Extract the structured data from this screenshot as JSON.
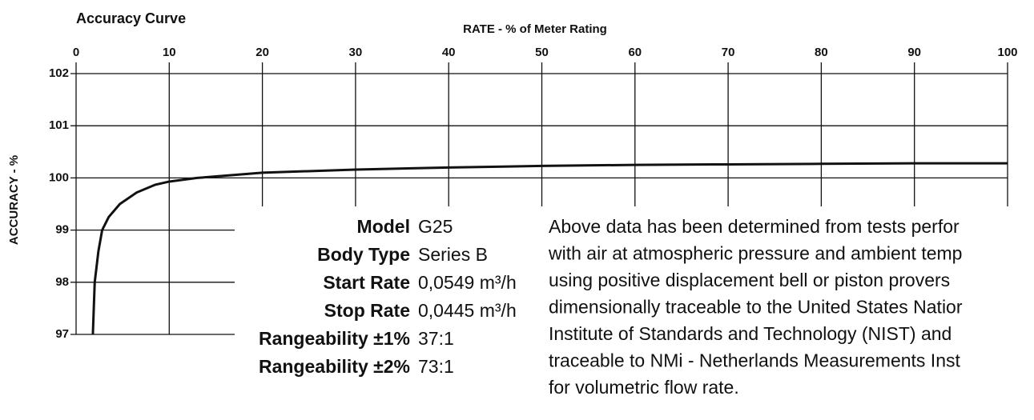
{
  "chart_data": {
    "type": "line",
    "title": "Accuracy Curve",
    "x_label": "RATE - % of Meter Rating",
    "y_label": "ACCURACY - %",
    "xlim": [
      0,
      100
    ],
    "xticks": [
      0,
      10,
      20,
      30,
      40,
      50,
      60,
      70,
      80,
      90,
      100
    ],
    "ylim": [
      97,
      102
    ],
    "yticks": [
      97,
      98,
      99,
      100,
      101,
      102
    ],
    "grid": true,
    "series": [
      {
        "name": "Accuracy",
        "color": "#111111",
        "x": [
          1.8,
          2.0,
          2.4,
          2.8,
          3.5,
          4.7,
          6.5,
          8.5,
          10,
          13,
          20,
          30,
          40,
          50,
          60,
          70,
          80,
          90,
          100
        ],
        "values": [
          97,
          98,
          98.6,
          99,
          99.25,
          99.5,
          99.72,
          99.87,
          99.93,
          100.0,
          100.1,
          100.16,
          100.2,
          100.23,
          100.25,
          100.26,
          100.27,
          100.28,
          100.28
        ]
      }
    ]
  },
  "specs": [
    {
      "label": "Model",
      "value": "G25"
    },
    {
      "label": "Body Type",
      "value": "Series B"
    },
    {
      "label": "Start Rate",
      "value": "0,0549 m³/h"
    },
    {
      "label": "Stop Rate",
      "value": "0,0445 m³/h"
    },
    {
      "label": "Rangeability ±1%",
      "value": "37:1"
    },
    {
      "label": "Rangeability ±2%",
      "value": "73:1"
    }
  ],
  "note": [
    "Above data has been determined from tests perfor",
    "with air at atmospheric pressure and ambient temp",
    "using positive displacement bell or piston provers",
    "dimensionally traceable to the United States Natior",
    "Institute of Standards and Technology (NIST) and",
    "traceable to NMi - Netherlands Measurements Inst",
    "for volumetric flow rate."
  ]
}
